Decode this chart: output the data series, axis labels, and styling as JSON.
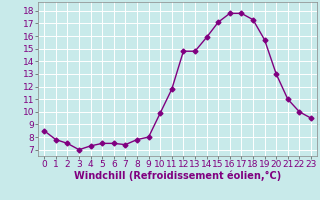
{
  "x": [
    0,
    1,
    2,
    3,
    4,
    5,
    6,
    7,
    8,
    9,
    10,
    11,
    12,
    13,
    14,
    15,
    16,
    17,
    18,
    19,
    20,
    21,
    22,
    23
  ],
  "y": [
    8.5,
    7.8,
    7.5,
    7.0,
    7.3,
    7.5,
    7.5,
    7.4,
    7.8,
    8.0,
    9.9,
    11.8,
    14.8,
    14.8,
    15.9,
    17.1,
    17.8,
    17.8,
    17.3,
    15.7,
    13.0,
    11.0,
    10.0,
    9.5
  ],
  "line_color": "#800080",
  "marker": "D",
  "markersize": 2.5,
  "linewidth": 1,
  "bg_color": "#c8eaea",
  "grid_color": "#ffffff",
  "xlabel": "Windchill (Refroidissement éolien,°C)",
  "xlabel_fontsize": 7,
  "tick_fontsize": 6.5,
  "ylim": [
    6.5,
    18.7
  ],
  "xlim": [
    -0.5,
    23.5
  ],
  "yticks": [
    7,
    8,
    9,
    10,
    11,
    12,
    13,
    14,
    15,
    16,
    17,
    18
  ],
  "xticks": [
    0,
    1,
    2,
    3,
    4,
    5,
    6,
    7,
    8,
    9,
    10,
    11,
    12,
    13,
    14,
    15,
    16,
    17,
    18,
    19,
    20,
    21,
    22,
    23
  ]
}
